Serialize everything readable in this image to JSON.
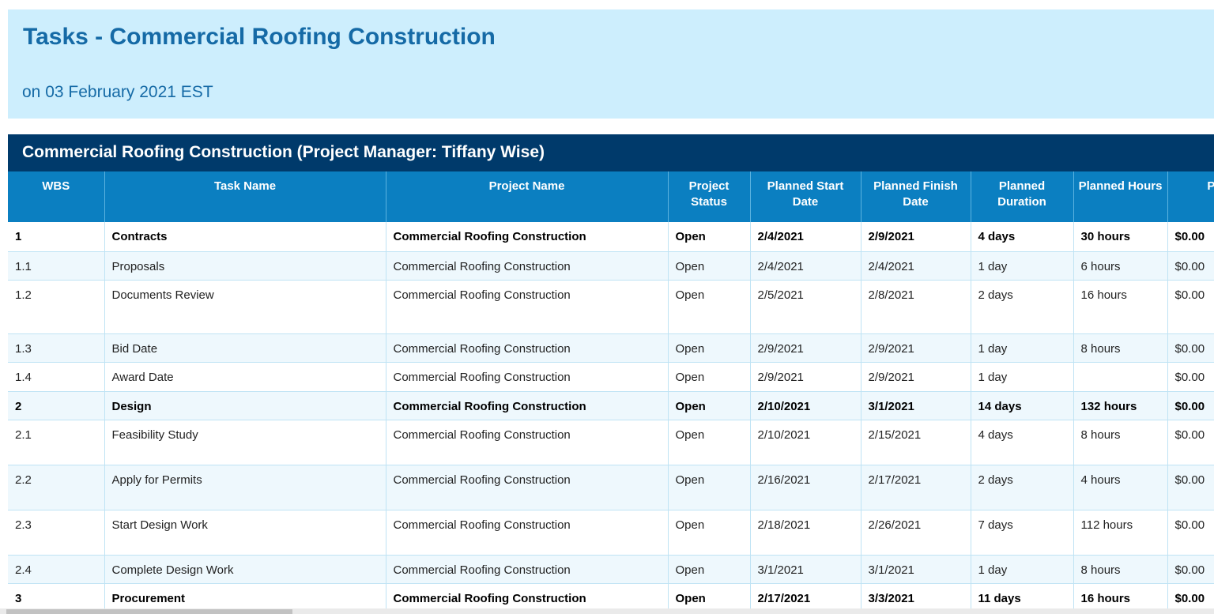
{
  "header": {
    "title": "Tasks - Commercial Roofing Construction",
    "subtitle": "on 03 February 2021 EST"
  },
  "table": {
    "title": "Commercial Roofing Construction (Project Manager: Tiffany Wise)",
    "columns": [
      "WBS",
      "Task Name",
      "Project Name",
      "Project Status",
      "Planned Start Date",
      "Planned Finish Date",
      "Planned Duration",
      "Planned Hours",
      "Planned"
    ],
    "rows": [
      {
        "bold": true,
        "cells": [
          "1",
          "Contracts",
          "Commercial Roofing Construction",
          "Open",
          "2/4/2021",
          "2/9/2021",
          "4 days",
          "30 hours",
          "$0.00"
        ]
      },
      {
        "bold": false,
        "cells": [
          "1.1",
          "Proposals",
          "Commercial Roofing Construction",
          "Open",
          "2/4/2021",
          "2/4/2021",
          "1 day",
          "6 hours",
          "$0.00"
        ]
      },
      {
        "bold": false,
        "cells": [
          "1.2",
          "Documents Review",
          "Commercial Roofing Construction",
          "Open",
          "2/5/2021",
          "2/8/2021",
          "2 days",
          "16 hours",
          "$0.00"
        ]
      },
      {
        "bold": false,
        "cells": [
          "1.3",
          "Bid Date",
          "Commercial Roofing Construction",
          "Open",
          "2/9/2021",
          "2/9/2021",
          "1 day",
          "8 hours",
          "$0.00"
        ]
      },
      {
        "bold": false,
        "cells": [
          "1.4",
          "Award Date",
          "Commercial Roofing Construction",
          "Open",
          "2/9/2021",
          "2/9/2021",
          "1 day",
          null,
          "$0.00"
        ]
      },
      {
        "bold": true,
        "cells": [
          "2",
          "Design",
          "Commercial Roofing Construction",
          "Open",
          "2/10/2021",
          "3/1/2021",
          "14 days",
          "132 hours",
          "$0.00"
        ]
      },
      {
        "bold": false,
        "cells": [
          "2.1",
          "Feasibility Study",
          "Commercial Roofing Construction",
          "Open",
          "2/10/2021",
          "2/15/2021",
          "4 days",
          "8 hours",
          "$0.00"
        ]
      },
      {
        "bold": false,
        "cells": [
          "2.2",
          "Apply for Permits",
          "Commercial Roofing Construction",
          "Open",
          "2/16/2021",
          "2/17/2021",
          "2 days",
          "4 hours",
          "$0.00"
        ]
      },
      {
        "bold": false,
        "cells": [
          "2.3",
          "Start Design Work",
          "Commercial Roofing Construction",
          "Open",
          "2/18/2021",
          "2/26/2021",
          "7 days",
          "112 hours",
          "$0.00"
        ]
      },
      {
        "bold": false,
        "cells": [
          "2.4",
          "Complete Design Work",
          "Commercial Roofing Construction",
          "Open",
          "3/1/2021",
          "3/1/2021",
          "1 day",
          "8 hours",
          "$0.00"
        ]
      },
      {
        "bold": true,
        "cells": [
          "3",
          "Procurement",
          "Commercial Roofing Construction",
          "Open",
          "2/17/2021",
          "3/3/2021",
          "11 days",
          "16 hours",
          "$0.00"
        ]
      }
    ]
  }
}
